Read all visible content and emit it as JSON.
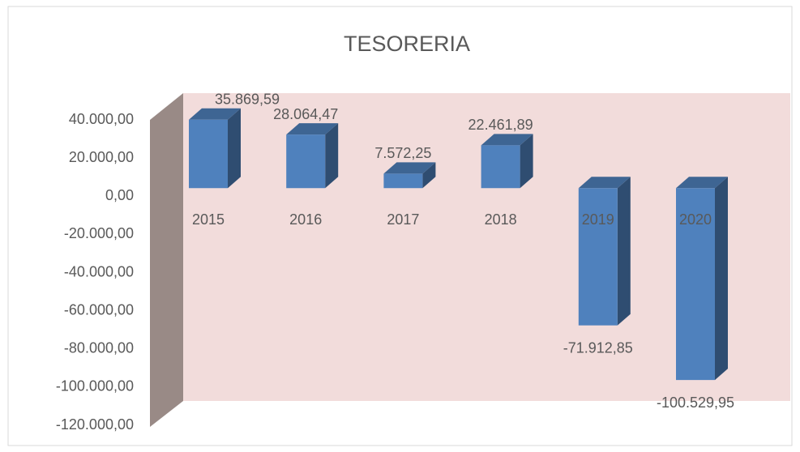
{
  "chart_data": {
    "type": "bar3d",
    "title": "TESORERIA",
    "categories": [
      "2015",
      "2016",
      "2017",
      "2018",
      "2019",
      "2020"
    ],
    "values": [
      35869.59,
      28064.47,
      7572.25,
      22461.89,
      -71912.85,
      -100529.95
    ],
    "value_labels": [
      "35.869,59",
      "28.064,47",
      "7.572,25",
      "22.461,89",
      "-71.912,85",
      "-100.529,95"
    ],
    "color": "#4f81bd",
    "ylim": [
      -120000,
      40000
    ],
    "yticks": [
      {
        "value": -120000,
        "label": "-120.000,00"
      },
      {
        "value": -100000,
        "label": "-100.000,00"
      },
      {
        "value": -80000,
        "label": "-80.000,00"
      },
      {
        "value": -60000,
        "label": "-60.000,00"
      },
      {
        "value": -40000,
        "label": "-40.000,00"
      },
      {
        "value": -20000,
        "label": "-20.000,00"
      },
      {
        "value": 0,
        "label": "0,00"
      },
      {
        "value": 20000,
        "label": "20.000,00"
      },
      {
        "value": 40000,
        "label": "40.000,00"
      }
    ],
    "grid": false
  }
}
